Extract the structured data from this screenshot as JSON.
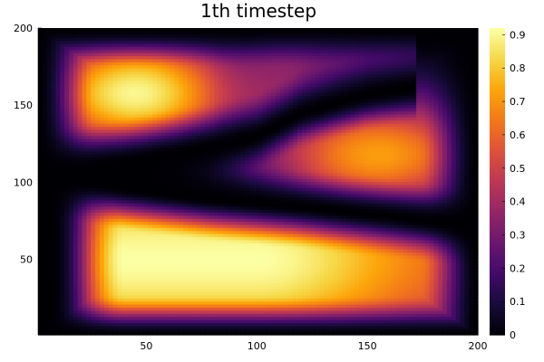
{
  "chart_data": {
    "type": "heatmap",
    "title": "1th timestep",
    "xlabel": "",
    "ylabel": "",
    "xlim": [
      1,
      200
    ],
    "ylim": [
      1,
      200
    ],
    "x_ticks": [
      50,
      100,
      150,
      200
    ],
    "y_ticks": [
      50,
      100,
      150,
      200
    ],
    "colorbar": {
      "colormap": "inferno",
      "range": [
        0,
        0.92
      ],
      "ticks": [
        0,
        0.1,
        0.2,
        0.3,
        0.4,
        0.5,
        0.6,
        0.7,
        0.8,
        0.9
      ],
      "tick_labels": [
        "0",
        "0.1",
        "0.2",
        "0.3",
        "0.4",
        "0.5",
        "0.6",
        "0.7",
        "0.8",
        "0.9"
      ]
    },
    "regions": [
      {
        "region": "upper-left lobe",
        "center": [
          45,
          158
        ],
        "peak": 0.9
      },
      {
        "region": "middle-right lobe",
        "center": [
          155,
          118
        ],
        "peak": 0.72
      },
      {
        "region": "bottom lobe",
        "center": [
          55,
          50
        ],
        "peak": 0.92
      }
    ],
    "zero_curves": [
      {
        "points": [
          [
            1,
            105
          ],
          [
            40,
            113
          ],
          [
            80,
            123
          ],
          [
            100,
            130
          ],
          [
            120,
            145
          ],
          [
            150,
            157
          ],
          [
            172,
            162
          ]
        ]
      },
      {
        "points": [
          [
            1,
            105
          ],
          [
            40,
            96
          ],
          [
            80,
            89
          ],
          [
            120,
            84
          ],
          [
            160,
            78
          ],
          [
            200,
            71
          ]
        ]
      }
    ],
    "grid": false,
    "legend": "colorbar-right"
  }
}
